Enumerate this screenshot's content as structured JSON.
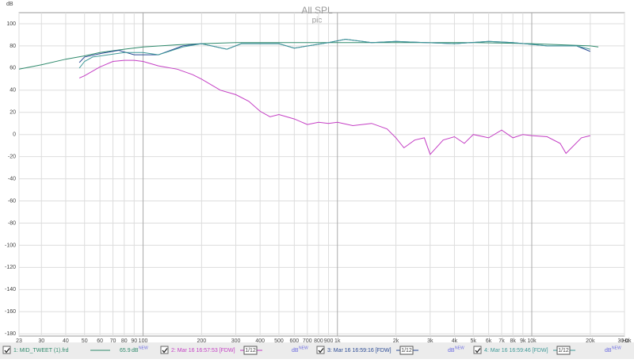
{
  "chart_data": {
    "type": "line",
    "title": "All SPL",
    "subtitle": "pic",
    "y_label": "dB",
    "x_unit": "Hz",
    "log_x": true,
    "grid": true,
    "xlim": [
      23,
      30000
    ],
    "ylim": [
      -182,
      110
    ],
    "xticks": [
      23,
      30,
      40,
      50,
      60,
      70,
      80,
      90,
      100,
      200,
      300,
      400,
      500,
      600,
      700,
      800,
      900,
      {
        "value": 1000,
        "label": "1k"
      },
      {
        "value": 2000,
        "label": "2k"
      },
      {
        "value": 3000,
        "label": "3k"
      },
      {
        "value": 4000,
        "label": "4k"
      },
      {
        "value": 5000,
        "label": "5k"
      },
      {
        "value": 6000,
        "label": "6k"
      },
      {
        "value": 7000,
        "label": "7k"
      },
      {
        "value": 8000,
        "label": "8k"
      },
      {
        "value": 9000,
        "label": "9k"
      },
      {
        "value": 10000,
        "label": "10k"
      },
      {
        "value": 20000,
        "label": "20k"
      },
      {
        "value": 30000,
        "label": "30.0k"
      }
    ],
    "yticks": [
      100,
      80,
      60,
      40,
      20,
      0,
      -20,
      -40,
      -60,
      -80,
      -100,
      -120,
      -140,
      -160,
      -180
    ],
    "legend_unit": "dB",
    "legend_tag": "NEW",
    "series": [
      {
        "name": "1: MID_TWEET (1).frd",
        "color": "#2f8a6c",
        "offset": "65.9",
        "x": [
          23,
          30,
          40,
          50,
          60,
          80,
          100,
          150,
          200,
          300,
          500,
          1000,
          2000,
          5000,
          10000,
          20000,
          22000
        ],
        "values": [
          59,
          63,
          68,
          71,
          74,
          77,
          79,
          81,
          82,
          83,
          83,
          83,
          83,
          83,
          82,
          80,
          79
        ]
      },
      {
        "name": "2: Mar 16 16:57:53 [FDW]",
        "color": "#c43ec4",
        "smoothing": "1/12",
        "x": [
          47,
          50,
          60,
          70,
          80,
          90,
          100,
          120,
          150,
          180,
          200,
          250,
          300,
          350,
          400,
          450,
          500,
          600,
          700,
          800,
          900,
          1000,
          1200,
          1500,
          1800,
          2000,
          2200,
          2500,
          2800,
          3000,
          3500,
          4000,
          4500,
          5000,
          6000,
          7000,
          8000,
          9000,
          10000,
          12000,
          14000,
          15000,
          18000,
          20000
        ],
        "values": [
          51,
          53,
          61,
          66,
          67,
          67,
          66,
          62,
          59,
          54,
          50,
          40,
          36,
          30,
          21,
          16,
          18,
          14,
          9,
          11,
          10,
          11,
          8,
          10,
          5,
          -3,
          -12,
          -5,
          -3,
          -18,
          -5,
          -2,
          -8,
          0,
          -3,
          4,
          -3,
          0,
          -1,
          -2,
          -8,
          -17,
          -3,
          -1
        ]
      },
      {
        "name": "3: Mar 16 16:59:16 [FDW]",
        "color": "#2c4c96",
        "smoothing": "1/12",
        "x": [
          47,
          50,
          60,
          75,
          90,
          100,
          120,
          160,
          200,
          270,
          320,
          500,
          600,
          900,
          1100,
          1500,
          2000,
          4000,
          6000,
          8000,
          12000,
          17000,
          20000
        ],
        "values": [
          65,
          70,
          73,
          76,
          72,
          72,
          72,
          80,
          82,
          77,
          82,
          82,
          78,
          83,
          86,
          83,
          84,
          82,
          84,
          83,
          80,
          80,
          75
        ]
      },
      {
        "name": "4: Mar 16 16:59:46 [FDW]",
        "color": "#3f9a98",
        "smoothing": "1/12",
        "x": [
          47,
          50,
          55,
          80,
          100,
          120,
          160,
          200,
          270,
          320,
          500,
          600,
          900,
          1100,
          1500,
          2000,
          4000,
          6000,
          8000,
          12000,
          17000,
          20000
        ],
        "values": [
          60,
          66,
          70,
          74,
          74,
          72,
          79,
          82,
          77,
          82,
          82,
          78,
          83,
          86,
          83,
          84,
          82,
          84,
          83,
          80,
          80,
          77
        ]
      }
    ]
  }
}
